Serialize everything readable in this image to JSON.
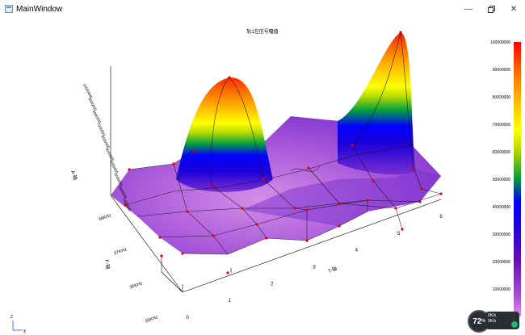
{
  "window": {
    "title": "MainWindow",
    "controls": [
      "minimize",
      "restore",
      "close"
    ]
  },
  "chart_data": {
    "type": "surface3d",
    "title": "轨1左信号幅值",
    "xlabel": "T-轴",
    "ylabel": "F-轴",
    "zlabel": "A-轴",
    "x_ticks": [
      "0",
      "1",
      "2",
      "3",
      "4",
      "5",
      "6"
    ],
    "y_ticks": [
      "35KHz",
      "36KHz",
      "37KHz",
      "38KHz"
    ],
    "z_ticks": [
      "1000000",
      "2000000",
      "3000000",
      "4000000",
      "5000000",
      "6000000",
      "7000000",
      "8000000",
      "9000000",
      "10000000"
    ],
    "colorbar": {
      "ticks": [
        "0",
        "10000000",
        "20000000",
        "30000000",
        "40000000",
        "50000000",
        "60000000",
        "70000000",
        "80000000",
        "90000000",
        "100000000"
      ],
      "colors": [
        "#e58be5",
        "#a24ed3",
        "#6a0fb5",
        "#1b00d8",
        "#0000ff",
        "#009a3a",
        "#aed400",
        "#ffff00",
        "#ffb000",
        "#ff6400",
        "#ff0000"
      ]
    },
    "peaks_approx": [
      {
        "t": 1,
        "f": "38KHz",
        "amplitude": 100000000
      },
      {
        "t": 5,
        "f": "35KHz",
        "amplitude": 100000000
      }
    ],
    "axes_marker": {
      "z": "Z",
      "x": "X"
    }
  },
  "status": {
    "percent": "72",
    "percent_suffix": "%",
    "line1": "0K/s",
    "line2": "0K/s"
  }
}
